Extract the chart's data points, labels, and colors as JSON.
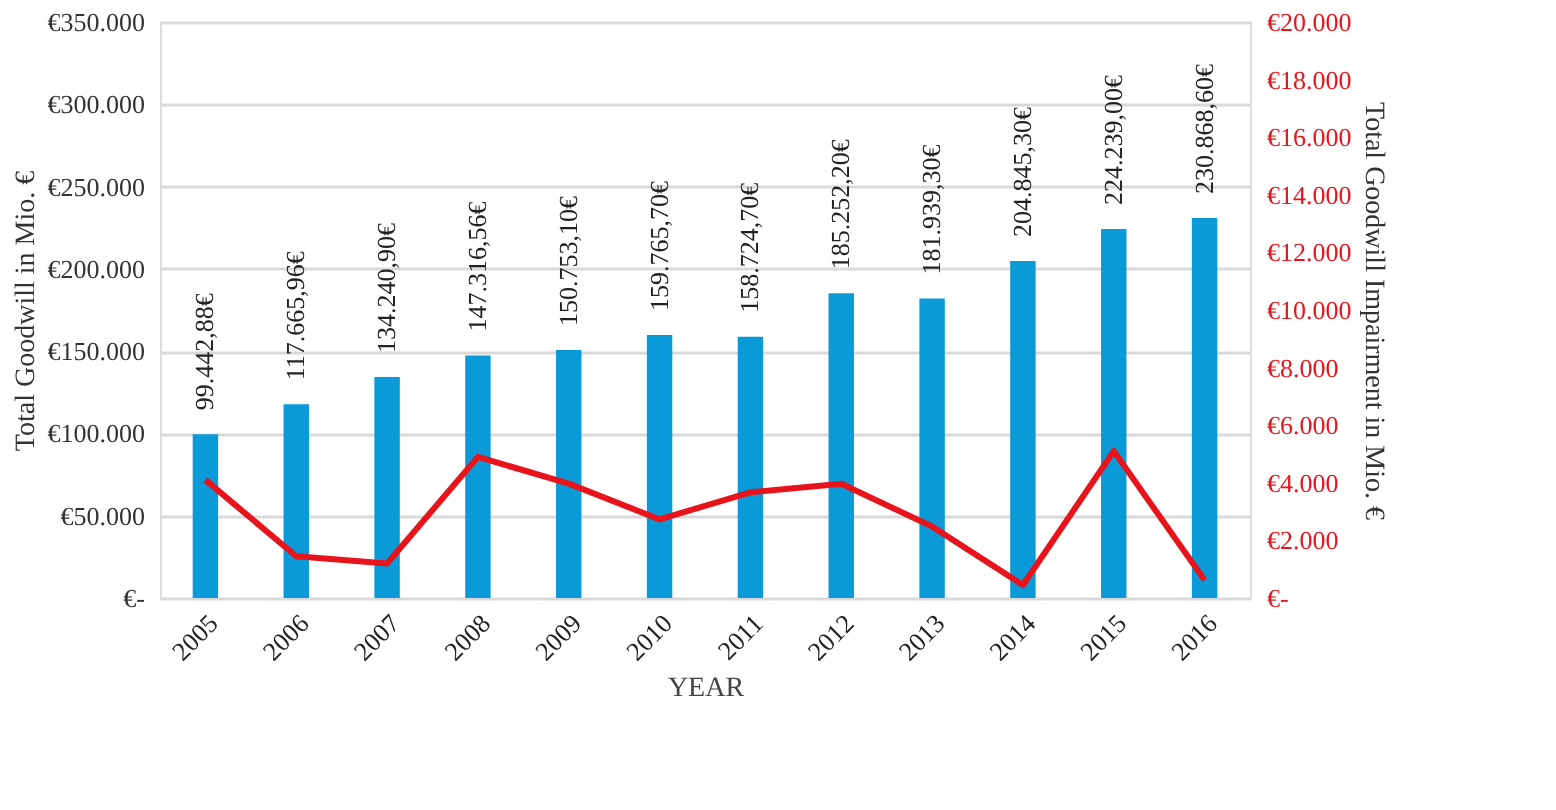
{
  "chart_data": {
    "type": "bar",
    "xlabel": "YEAR",
    "ylabel": "Total Goodwill in Mio. €",
    "y2label": "Total Goodwill Impairment in Mio. €",
    "categories": [
      "2005",
      "2006",
      "2007",
      "2008",
      "2009",
      "2010",
      "2011",
      "2012",
      "2013",
      "2014",
      "2015",
      "2016"
    ],
    "series": [
      {
        "color": "#0a9ad8",
        "values": [
          99442.88,
          117665.96,
          134240.9,
          147316.56,
          150753.1,
          159765.7,
          158724.7,
          185252.2,
          181939.3,
          204845.3,
          224239.0,
          230868.6
        ],
        "value_labels": [
          "99.442,88€",
          "117.665,96€",
          "134.240,90€",
          "147.316,56€",
          "150.753,10€",
          "159.765,70€",
          "158.724,70€",
          "185.252,20€",
          "181.939,30€",
          "204.845,30€",
          "224.239,00€",
          "230.868,60€"
        ]
      },
      {
        "type": "line",
        "axis": "y2",
        "color": "#e8141b",
        "values": [
          4100,
          1450,
          1200,
          4900,
          3970,
          2730,
          3670,
          3970,
          2480,
          450,
          5100,
          620
        ]
      }
    ],
    "ylim": [
      0,
      350000
    ],
    "yticks": [
      {
        "value": 0,
        "label": "€-"
      },
      {
        "value": 50000,
        "label": "€50.000"
      },
      {
        "value": 100000,
        "label": "€100.000"
      },
      {
        "value": 150000,
        "label": "€150.000"
      },
      {
        "value": 200000,
        "label": "€200.000"
      },
      {
        "value": 250000,
        "label": "€250.000"
      },
      {
        "value": 300000,
        "label": "€300.000"
      },
      {
        "value": 350000,
        "label": "€350.000"
      }
    ],
    "y2lim": [
      0,
      20000
    ],
    "y2ticks": [
      {
        "value": 0,
        "label": "€-"
      },
      {
        "value": 2000,
        "label": "€2.000"
      },
      {
        "value": 4000,
        "label": "€4.000"
      },
      {
        "value": 6000,
        "label": "€6.000"
      },
      {
        "value": 8000,
        "label": "€8.000"
      },
      {
        "value": 10000,
        "label": "€10.000"
      },
      {
        "value": 12000,
        "label": "€12.000"
      },
      {
        "value": 14000,
        "label": "€14.000"
      },
      {
        "value": 16000,
        "label": "€16.000"
      },
      {
        "value": 18000,
        "label": "€18.000"
      },
      {
        "value": 20000,
        "label": "€20.000"
      }
    ],
    "grid": "y",
    "marker": "none",
    "line_style": "solid"
  }
}
